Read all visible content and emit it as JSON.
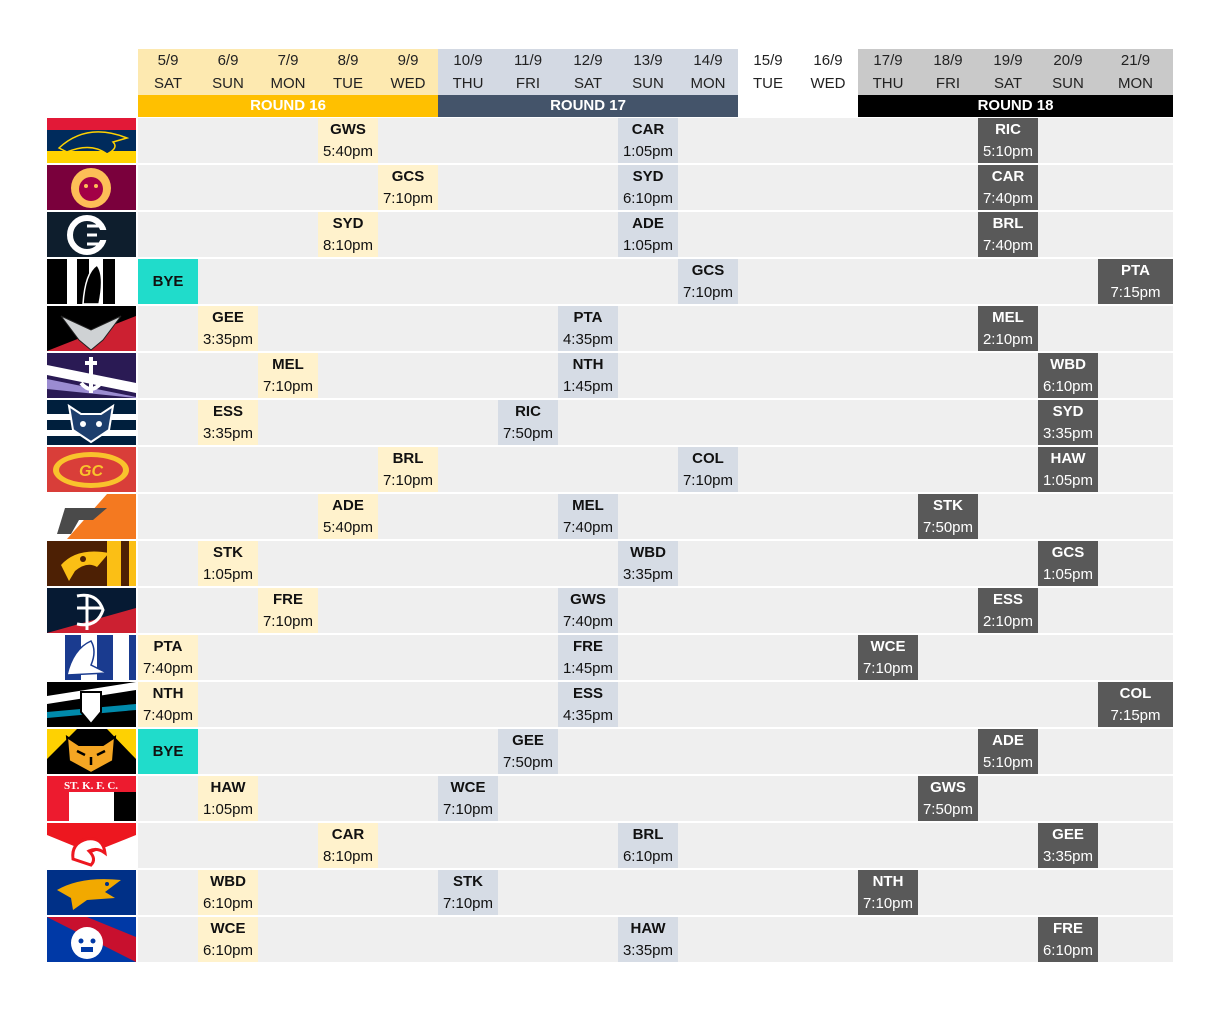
{
  "colors": {
    "r16_header": "#fde9b0",
    "r16_label": "#ffc000",
    "r17_header": "#d3d9e3",
    "r17_label": "#44546a",
    "r18_header": "#c9c9c9",
    "r18_label": "#000000",
    "r16_cell": "#fff2cc",
    "r17_cell": "#d6dce5",
    "r18_cell": "#595959",
    "bye_cell": "#20dccb",
    "row_bg": "#efefef"
  },
  "dates": [
    {
      "date": "5/9",
      "day": "SAT",
      "round": 16
    },
    {
      "date": "6/9",
      "day": "SUN",
      "round": 16
    },
    {
      "date": "7/9",
      "day": "MON",
      "round": 16
    },
    {
      "date": "8/9",
      "day": "TUE",
      "round": 16
    },
    {
      "date": "9/9",
      "day": "WED",
      "round": 16
    },
    {
      "date": "10/9",
      "day": "THU",
      "round": 17
    },
    {
      "date": "11/9",
      "day": "FRI",
      "round": 17
    },
    {
      "date": "12/9",
      "day": "SAT",
      "round": 17
    },
    {
      "date": "13/9",
      "day": "SUN",
      "round": 17
    },
    {
      "date": "14/9",
      "day": "MON",
      "round": 17
    },
    {
      "date": "15/9",
      "day": "TUE",
      "round": 0
    },
    {
      "date": "16/9",
      "day": "WED",
      "round": 0
    },
    {
      "date": "17/9",
      "day": "THU",
      "round": 18
    },
    {
      "date": "18/9",
      "day": "FRI",
      "round": 18
    },
    {
      "date": "19/9",
      "day": "SAT",
      "round": 18
    },
    {
      "date": "20/9",
      "day": "SUN",
      "round": 18
    },
    {
      "date": "21/9",
      "day": "MON",
      "round": 18
    }
  ],
  "rounds": [
    {
      "label": "ROUND 16",
      "start": 0,
      "end": 4,
      "key": "r16"
    },
    {
      "label": "ROUND 17",
      "start": 5,
      "end": 9,
      "key": "r17"
    },
    {
      "label": "ROUND 18",
      "start": 12,
      "end": 16,
      "key": "r18"
    }
  ],
  "teams": [
    {
      "logo": "crows-logo-icon",
      "games": [
        {
          "col": 3,
          "opp": "GWS",
          "time": "5:40pm"
        },
        {
          "col": 8,
          "opp": "CAR",
          "time": "1:05pm"
        },
        {
          "col": 14,
          "opp": "RIC",
          "time": "5:10pm"
        }
      ]
    },
    {
      "logo": "lions-logo-icon",
      "games": [
        {
          "col": 4,
          "opp": "GCS",
          "time": "7:10pm"
        },
        {
          "col": 8,
          "opp": "SYD",
          "time": "6:10pm"
        },
        {
          "col": 14,
          "opp": "CAR",
          "time": "7:40pm"
        }
      ]
    },
    {
      "logo": "blues-logo-icon",
      "games": [
        {
          "col": 3,
          "opp": "SYD",
          "time": "8:10pm"
        },
        {
          "col": 8,
          "opp": "ADE",
          "time": "1:05pm"
        },
        {
          "col": 14,
          "opp": "BRL",
          "time": "7:40pm"
        }
      ]
    },
    {
      "logo": "magpies-logo-icon",
      "games": [
        {
          "col": 0,
          "opp": "BYE",
          "time": ""
        },
        {
          "col": 9,
          "opp": "GCS",
          "time": "7:10pm"
        },
        {
          "col": 16,
          "opp": "PTA",
          "time": "7:15pm"
        }
      ]
    },
    {
      "logo": "bombers-logo-icon",
      "games": [
        {
          "col": 1,
          "opp": "GEE",
          "time": "3:35pm"
        },
        {
          "col": 7,
          "opp": "PTA",
          "time": "4:35pm"
        },
        {
          "col": 14,
          "opp": "MEL",
          "time": "2:10pm"
        }
      ]
    },
    {
      "logo": "dockers-logo-icon",
      "games": [
        {
          "col": 2,
          "opp": "MEL",
          "time": "7:10pm"
        },
        {
          "col": 7,
          "opp": "NTH",
          "time": "1:45pm"
        },
        {
          "col": 15,
          "opp": "WBD",
          "time": "6:10pm"
        }
      ]
    },
    {
      "logo": "cats-logo-icon",
      "games": [
        {
          "col": 1,
          "opp": "ESS",
          "time": "3:35pm"
        },
        {
          "col": 6,
          "opp": "RIC",
          "time": "7:50pm"
        },
        {
          "col": 15,
          "opp": "SYD",
          "time": "3:35pm"
        }
      ]
    },
    {
      "logo": "suns-logo-icon",
      "games": [
        {
          "col": 4,
          "opp": "BRL",
          "time": "7:10pm"
        },
        {
          "col": 9,
          "opp": "COL",
          "time": "7:10pm"
        },
        {
          "col": 15,
          "opp": "HAW",
          "time": "1:05pm"
        }
      ]
    },
    {
      "logo": "giants-logo-icon",
      "games": [
        {
          "col": 3,
          "opp": "ADE",
          "time": "5:40pm"
        },
        {
          "col": 7,
          "opp": "MEL",
          "time": "7:40pm"
        },
        {
          "col": 13,
          "opp": "STK",
          "time": "7:50pm"
        }
      ]
    },
    {
      "logo": "hawks-logo-icon",
      "games": [
        {
          "col": 1,
          "opp": "STK",
          "time": "1:05pm"
        },
        {
          "col": 8,
          "opp": "WBD",
          "time": "3:35pm"
        },
        {
          "col": 15,
          "opp": "GCS",
          "time": "1:05pm"
        }
      ]
    },
    {
      "logo": "demons-logo-icon",
      "games": [
        {
          "col": 2,
          "opp": "FRE",
          "time": "7:10pm"
        },
        {
          "col": 7,
          "opp": "GWS",
          "time": "7:40pm"
        },
        {
          "col": 14,
          "opp": "ESS",
          "time": "2:10pm"
        }
      ]
    },
    {
      "logo": "kangaroos-logo-icon",
      "games": [
        {
          "col": 0,
          "opp": "PTA",
          "time": "7:40pm"
        },
        {
          "col": 7,
          "opp": "FRE",
          "time": "1:45pm"
        },
        {
          "col": 12,
          "opp": "WCE",
          "time": "7:10pm"
        }
      ]
    },
    {
      "logo": "power-logo-icon",
      "games": [
        {
          "col": 0,
          "opp": "NTH",
          "time": "7:40pm"
        },
        {
          "col": 7,
          "opp": "ESS",
          "time": "4:35pm"
        },
        {
          "col": 16,
          "opp": "COL",
          "time": "7:15pm"
        }
      ]
    },
    {
      "logo": "tigers-logo-icon",
      "games": [
        {
          "col": 0,
          "opp": "BYE",
          "time": ""
        },
        {
          "col": 6,
          "opp": "GEE",
          "time": "7:50pm"
        },
        {
          "col": 14,
          "opp": "ADE",
          "time": "5:10pm"
        }
      ]
    },
    {
      "logo": "saints-logo-icon",
      "logo_text": "ST. K. F. C.",
      "games": [
        {
          "col": 1,
          "opp": "HAW",
          "time": "1:05pm"
        },
        {
          "col": 5,
          "opp": "WCE",
          "time": "7:10pm"
        },
        {
          "col": 13,
          "opp": "GWS",
          "time": "7:50pm"
        }
      ]
    },
    {
      "logo": "swans-logo-icon",
      "games": [
        {
          "col": 3,
          "opp": "CAR",
          "time": "8:10pm"
        },
        {
          "col": 8,
          "opp": "BRL",
          "time": "6:10pm"
        },
        {
          "col": 15,
          "opp": "GEE",
          "time": "3:35pm"
        }
      ]
    },
    {
      "logo": "eagles-logo-icon",
      "games": [
        {
          "col": 1,
          "opp": "WBD",
          "time": "6:10pm"
        },
        {
          "col": 5,
          "opp": "STK",
          "time": "7:10pm"
        },
        {
          "col": 12,
          "opp": "NTH",
          "time": "7:10pm"
        }
      ]
    },
    {
      "logo": "bulldogs-logo-icon",
      "games": [
        {
          "col": 1,
          "opp": "WCE",
          "time": "6:10pm"
        },
        {
          "col": 8,
          "opp": "HAW",
          "time": "3:35pm"
        },
        {
          "col": 15,
          "opp": "FRE",
          "time": "6:10pm"
        }
      ]
    }
  ]
}
